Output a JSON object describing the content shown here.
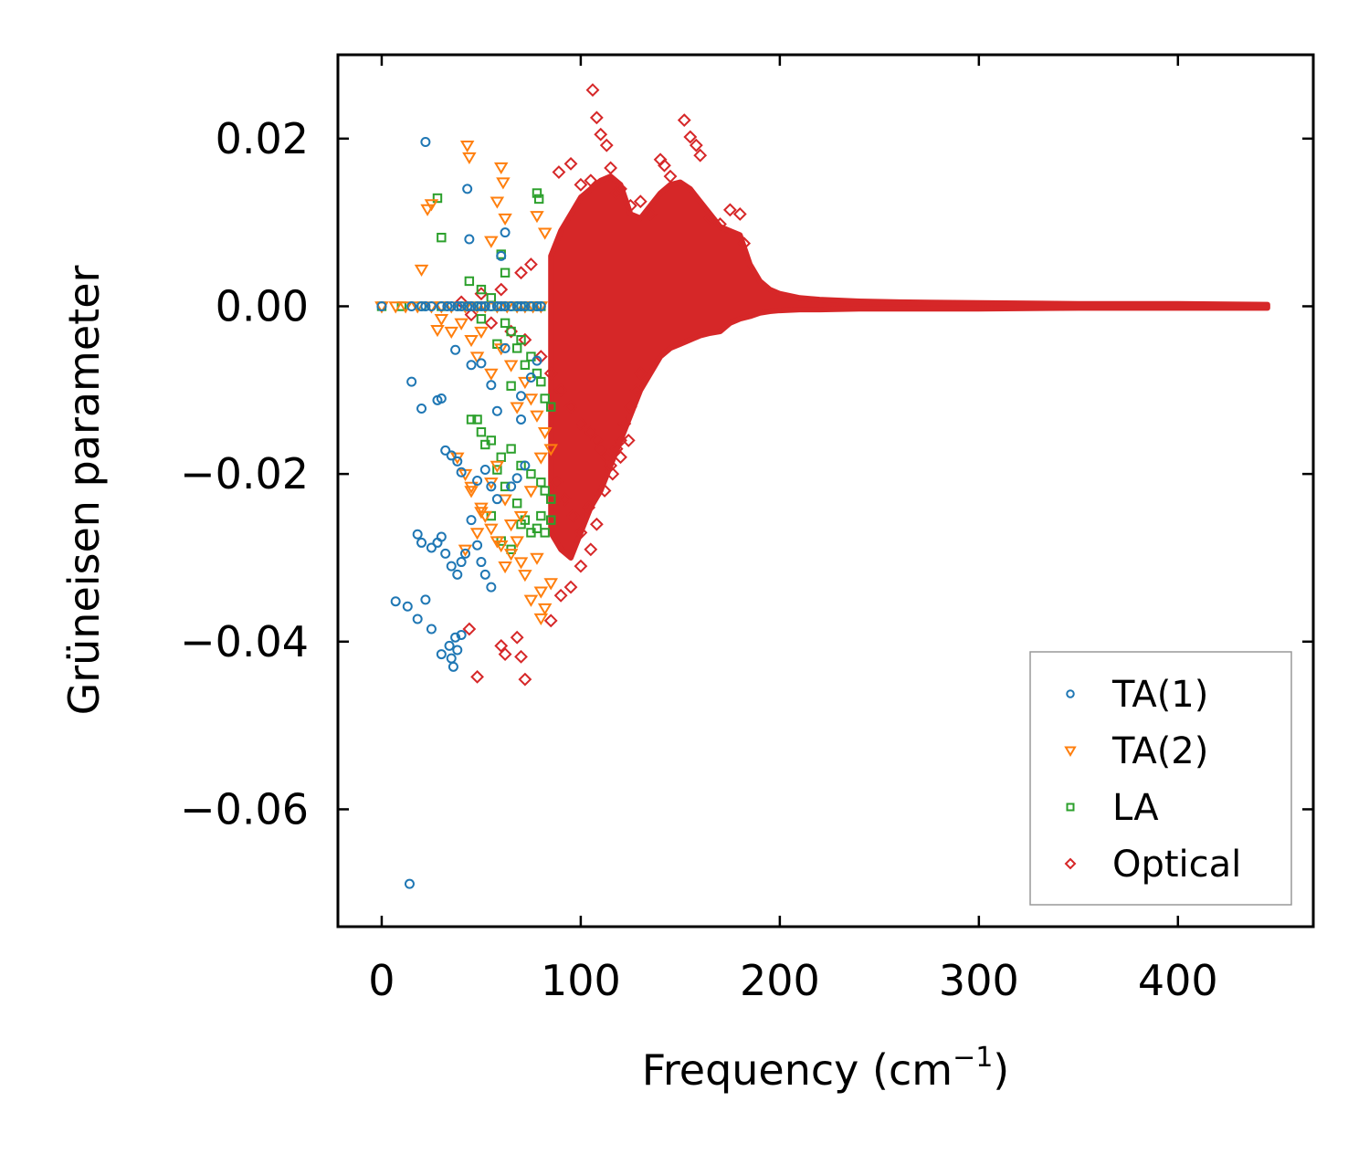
{
  "chart_data": {
    "type": "scatter",
    "title": "",
    "xlabel": "Frequency (cm",
    "xlabel_sup": "−1",
    "xlabel_close": ")",
    "ylabel": "Grüneisen parameter",
    "xlim": [
      -22,
      468
    ],
    "ylim": [
      -0.074,
      0.03
    ],
    "xticks": [
      0,
      100,
      200,
      300,
      400
    ],
    "xtick_labels": [
      "0",
      "100",
      "200",
      "300",
      "400"
    ],
    "yticks": [
      0.02,
      0.0,
      -0.02,
      -0.04,
      -0.06
    ],
    "ytick_labels": [
      "0.02",
      "0.00",
      "−0.02",
      "−0.04",
      "−0.06"
    ],
    "grid": false,
    "legend_position": "lower-right",
    "series": [
      {
        "name": "TA(1)",
        "marker": "circle",
        "color": "#1f77b4",
        "x": [
          0,
          15,
          20,
          22,
          25,
          30,
          33,
          35,
          38,
          40,
          43,
          45,
          48,
          50,
          52,
          55,
          58,
          60,
          62,
          65,
          68,
          70,
          72,
          75,
          78,
          80,
          22,
          43,
          44,
          62,
          60,
          15,
          20,
          28,
          30,
          37,
          45,
          50,
          55,
          70,
          78,
          32,
          35,
          38,
          40,
          48,
          52,
          55,
          58,
          68,
          72,
          18,
          20,
          25,
          28,
          30,
          32,
          35,
          38,
          40,
          42,
          45,
          48,
          50,
          52,
          55,
          7,
          13,
          18,
          22,
          25,
          30,
          34,
          35,
          36,
          37,
          38,
          40,
          14,
          65,
          70,
          75,
          58,
          62
        ],
        "y": [
          0.0,
          0.0,
          0.0,
          0.0,
          0.0,
          0.0,
          0.0,
          0.0,
          0.0,
          0.0,
          0.0,
          0.0,
          0.0,
          0.0,
          0.0,
          0.0,
          0.0,
          0.0,
          0.0,
          0.0,
          0.0,
          0.0,
          0.0,
          0.0,
          0.0,
          0.0,
          0.0196,
          0.014,
          0.008,
          0.0088,
          0.006,
          -0.009,
          -0.0122,
          -0.0112,
          -0.011,
          -0.0052,
          -0.007,
          -0.0068,
          -0.0094,
          -0.0107,
          -0.0065,
          -0.0172,
          -0.0178,
          -0.0185,
          -0.0198,
          -0.0208,
          -0.0195,
          -0.0215,
          -0.023,
          -0.0205,
          -0.019,
          -0.0272,
          -0.0282,
          -0.0288,
          -0.0282,
          -0.0275,
          -0.0295,
          -0.031,
          -0.032,
          -0.0305,
          -0.0295,
          -0.0255,
          -0.0285,
          -0.0305,
          -0.032,
          -0.0335,
          -0.0352,
          -0.0358,
          -0.0373,
          -0.035,
          -0.0385,
          -0.0415,
          -0.0405,
          -0.042,
          -0.043,
          -0.0395,
          -0.041,
          -0.0392,
          -0.0689,
          -0.0215,
          -0.0135,
          -0.0085,
          -0.0125,
          -0.005
        ]
      },
      {
        "name": "TA(2)",
        "marker": "triangle-down",
        "color": "#ff7f0e",
        "x": [
          0,
          7,
          12,
          18,
          25,
          30,
          35,
          42,
          48,
          52,
          58,
          63,
          68,
          72,
          76,
          80,
          43,
          44,
          60,
          61,
          23,
          25,
          20,
          55,
          58,
          62,
          78,
          82,
          28,
          30,
          35,
          40,
          45,
          48,
          50,
          55,
          60,
          65,
          68,
          72,
          75,
          78,
          82,
          85,
          38,
          42,
          45,
          50,
          55,
          58,
          62,
          65,
          70,
          75,
          80,
          42,
          48,
          52,
          58,
          62,
          68,
          72,
          78,
          80,
          82,
          85,
          45,
          50,
          55,
          60,
          65,
          70,
          75,
          80
        ],
        "y": [
          0.0,
          0.0,
          0.0,
          0.0,
          0.0,
          0.0,
          0.0,
          0.0,
          0.0,
          0.0,
          0.0,
          0.0,
          0.0,
          0.0,
          0.0,
          0.0,
          0.0192,
          0.0178,
          0.0166,
          0.0148,
          0.0116,
          0.0122,
          0.0044,
          0.0078,
          0.0125,
          0.0105,
          0.0108,
          0.0088,
          -0.0028,
          -0.0015,
          -0.003,
          -0.002,
          -0.004,
          -0.006,
          -0.003,
          -0.008,
          -0.005,
          -0.007,
          -0.012,
          -0.009,
          -0.011,
          -0.013,
          -0.015,
          -0.017,
          -0.018,
          -0.02,
          -0.022,
          -0.024,
          -0.021,
          -0.019,
          -0.023,
          -0.026,
          -0.025,
          -0.022,
          -0.018,
          -0.029,
          -0.027,
          -0.025,
          -0.028,
          -0.031,
          -0.028,
          -0.032,
          -0.03,
          -0.034,
          -0.036,
          -0.033,
          -0.0215,
          -0.0245,
          -0.0265,
          -0.0285,
          -0.0295,
          -0.0305,
          -0.035,
          -0.0372
        ]
      },
      {
        "name": "LA",
        "marker": "square",
        "color": "#2ca02c",
        "x": [
          0,
          10,
          20,
          30,
          40,
          45,
          50,
          55,
          60,
          65,
          70,
          75,
          78,
          80,
          28,
          30,
          78,
          79,
          60,
          62,
          44,
          50,
          55,
          62,
          65,
          68,
          70,
          72,
          75,
          78,
          80,
          82,
          85,
          45,
          50,
          55,
          60,
          65,
          70,
          75,
          80,
          82,
          85,
          48,
          52,
          58,
          62,
          68,
          72,
          78,
          82,
          85,
          55,
          60,
          65,
          70,
          75,
          80,
          50,
          58,
          65
        ],
        "y": [
          0.0,
          0.0,
          0.0,
          0.0,
          0.0,
          0.0,
          0.0,
          0.0,
          0.0,
          0.0,
          0.0,
          0.0,
          0.0,
          0.0,
          0.0129,
          0.0082,
          0.0135,
          0.0128,
          0.0062,
          0.004,
          0.003,
          0.002,
          0.001,
          -0.002,
          -0.003,
          -0.005,
          -0.004,
          -0.007,
          -0.006,
          -0.008,
          -0.009,
          -0.011,
          -0.012,
          -0.0135,
          -0.015,
          -0.016,
          -0.018,
          -0.017,
          -0.019,
          -0.02,
          -0.021,
          -0.022,
          -0.023,
          -0.0135,
          -0.0165,
          -0.0195,
          -0.0215,
          -0.0235,
          -0.0255,
          -0.0265,
          -0.027,
          -0.0255,
          -0.025,
          -0.028,
          -0.029,
          -0.026,
          -0.027,
          -0.025,
          -0.0015,
          -0.0045,
          -0.0095
        ]
      },
      {
        "name": "Optical",
        "marker": "diamond",
        "color": "#d62728",
        "x": [
          106,
          108,
          110,
          113,
          152,
          155,
          158,
          160,
          140,
          142,
          145,
          89,
          95,
          100,
          105,
          115,
          118,
          120,
          125,
          130,
          135,
          165,
          170,
          175,
          180,
          182,
          40,
          45,
          50,
          55,
          60,
          65,
          70,
          72,
          75,
          80,
          85,
          90,
          95,
          100,
          105,
          108,
          110,
          113,
          115,
          118,
          120,
          122,
          125,
          128,
          130,
          88,
          92,
          96,
          100,
          104,
          108,
          112,
          116,
          120,
          124,
          44,
          48,
          60,
          62,
          68,
          70,
          72,
          85,
          90,
          95,
          100,
          105
        ],
        "y": [
          0.0258,
          0.0225,
          0.0205,
          0.0192,
          0.0222,
          0.0202,
          0.0192,
          0.018,
          0.0175,
          0.0168,
          0.0155,
          0.016,
          0.017,
          0.0145,
          0.015,
          0.0165,
          0.0135,
          0.014,
          0.012,
          0.0125,
          0.011,
          0.0105,
          0.0098,
          0.0115,
          0.011,
          0.0075,
          0.0005,
          -0.001,
          0.0015,
          -0.002,
          0.002,
          -0.003,
          0.004,
          -0.004,
          0.005,
          -0.006,
          -0.008,
          -0.01,
          -0.012,
          -0.014,
          -0.015,
          -0.016,
          -0.017,
          -0.018,
          -0.019,
          -0.017,
          -0.016,
          -0.014,
          -0.012,
          -0.01,
          -0.008,
          -0.021,
          -0.023,
          -0.025,
          -0.027,
          -0.024,
          -0.026,
          -0.022,
          -0.02,
          -0.018,
          -0.016,
          -0.0385,
          -0.0442,
          -0.0405,
          -0.0415,
          -0.0395,
          -0.0418,
          -0.0445,
          -0.0375,
          -0.0345,
          -0.0335,
          -0.031,
          -0.029
        ]
      }
    ],
    "dense_band": {
      "name": "Optical",
      "x": [
        85,
        90,
        95,
        100,
        105,
        110,
        115,
        120,
        125,
        130,
        135,
        140,
        145,
        150,
        155,
        160,
        165,
        170,
        175,
        180,
        185,
        190,
        195,
        200,
        210,
        220,
        240,
        260,
        300,
        350,
        400,
        445
      ],
      "y_upper": [
        0.006,
        0.009,
        0.011,
        0.013,
        0.014,
        0.015,
        0.0155,
        0.0145,
        0.011,
        0.0105,
        0.012,
        0.0135,
        0.0145,
        0.0148,
        0.014,
        0.0125,
        0.011,
        0.0095,
        0.009,
        0.0085,
        0.005,
        0.003,
        0.002,
        0.0015,
        0.001,
        0.0008,
        0.0006,
        0.0005,
        0.0004,
        0.0003,
        0.0003,
        0.0002
      ],
      "y_lower": [
        -0.027,
        -0.029,
        -0.03,
        -0.027,
        -0.024,
        -0.022,
        -0.019,
        -0.016,
        -0.013,
        -0.01,
        -0.008,
        -0.006,
        -0.005,
        -0.0045,
        -0.004,
        -0.0035,
        -0.0032,
        -0.003,
        -0.002,
        -0.0015,
        -0.0012,
        -0.0008,
        -0.0006,
        -0.0005,
        -0.0004,
        -0.0004,
        -0.0003,
        -0.0003,
        -0.0003,
        -0.0002,
        -0.0002,
        -0.0002
      ]
    }
  }
}
